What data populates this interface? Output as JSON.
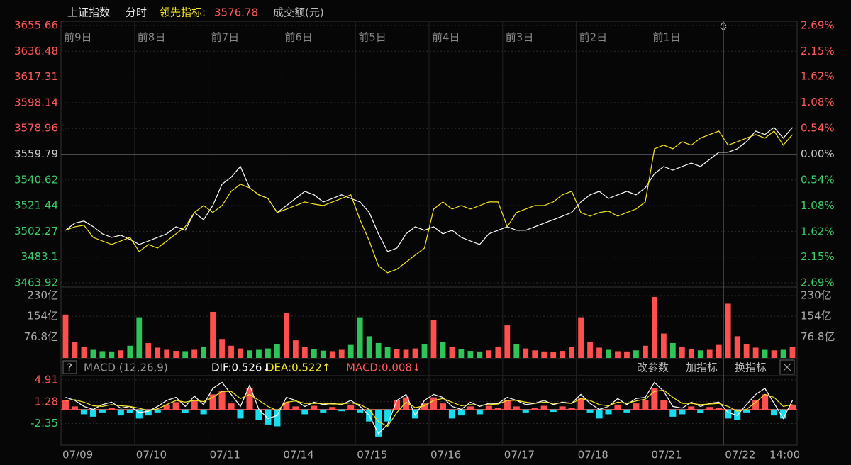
{
  "header": {
    "name": "上证指数",
    "mode": "分时",
    "indicator_label": "领先指标:",
    "indicator_value": 3576.78,
    "volume_label": "成交额(元)"
  },
  "chart_data": [
    {
      "type": "line",
      "categories": [
        "前9日",
        "前8日",
        "前7日",
        "前6日",
        "前5日",
        "前4日",
        "前3日",
        "前2日",
        "前1日",
        null
      ],
      "ylim": [
        3463.92,
        3655.66
      ],
      "yticks": [
        3655.66,
        3636.48,
        3617.31,
        3598.14,
        3578.96,
        3559.79,
        3540.62,
        3521.44,
        3502.27,
        3483.1,
        3463.92
      ],
      "y2lim": [
        -2.69,
        2.69
      ],
      "y2ticks": [
        {
          "value": 2.69,
          "label": "2.69%"
        },
        {
          "value": 2.15,
          "label": "2.15%"
        },
        {
          "value": 1.62,
          "label": "1.62%"
        },
        {
          "value": 1.08,
          "label": "1.08%"
        },
        {
          "value": 0.54,
          "label": "0.54%"
        },
        {
          "value": 0,
          "label": "0.00%"
        },
        {
          "value": -0.54,
          "label": "0.54%"
        },
        {
          "value": -1.08,
          "label": "1.08%"
        },
        {
          "value": -1.62,
          "label": "1.62%"
        },
        {
          "value": -2.15,
          "label": "2.15%"
        },
        {
          "value": -2.69,
          "label": "2.69%"
        }
      ],
      "grid": true,
      "series": [
        {
          "color": "#ffffff",
          "values": [
            [
              3503.1,
              3508.4,
              3510.0,
              3505.8,
              3500.4,
              3497.8,
              3499.4,
              3496.2
            ],
            [
              3492.5,
              3495.1,
              3497.8,
              3500.4,
              3505.7,
              3503.1,
              3516.3,
              3511.0
            ],
            [
              3521.5,
              3537.4,
              3542.7,
              3550.6,
              3534.7,
              3529.5,
              3526.8,
              3516.3
            ],
            [
              3521.5,
              3526.8,
              3532.1,
              3529.5,
              3524.2,
              3526.8,
              3529.5,
              3526.8
            ],
            [
              3524.2,
              3516.3,
              3500.4,
              3487.2,
              3489.8,
              3500.4,
              3505.7,
              3503.1
            ],
            [
              3505.7,
              3500.4,
              3503.1,
              3497.8,
              3495.1,
              3492.5,
              3500.4,
              3503.1
            ],
            [
              3505.7,
              3503.1,
              3503.1,
              3505.7,
              3508.4,
              3511.0,
              3513.6,
              3516.3
            ],
            [
              3524.2,
              3529.5,
              3532.1,
              3526.8,
              3529.5,
              3532.1,
              3529.5,
              3534.7
            ],
            [
              3545.3,
              3550.6,
              3547.9,
              3550.6,
              3553.2,
              3550.6,
              3555.9,
              3561.2
            ],
            [
              3561.2,
              3563.8,
              3569.1,
              3577.0,
              3574.4,
              3579.7,
              3571.8,
              3579.7
            ]
          ]
        },
        {
          "color": "#f5e625",
          "values": [
            [
              3503.1,
              3505.7,
              3506.8,
              3497.8,
              3495.1,
              3492.5,
              3495.1,
              3497.8
            ],
            [
              3487.2,
              3492.5,
              3489.8,
              3495.1,
              3500.4,
              3505.7,
              3516.3,
              3521.5
            ],
            [
              3516.3,
              3521.5,
              3532.1,
              3537.4,
              3534.7,
              3529.5,
              3526.8,
              3516.3
            ],
            [
              3518.9,
              3521.5,
              3524.2,
              3522.6,
              3521.5,
              3524.2,
              3526.8,
              3529.5
            ],
            [
              3510.9,
              3495.1,
              3476.6,
              3471.4,
              3474.0,
              3479.3,
              3484.6,
              3489.8
            ],
            [
              3518.9,
              3524.2,
              3518.9,
              3521.5,
              3518.9,
              3521.5,
              3524.2,
              3524.2
            ],
            [
              3505.7,
              3516.3,
              3518.9,
              3521.5,
              3521.5,
              3524.2,
              3529.5,
              3532.1
            ],
            [
              3516.3,
              3513.6,
              3516.3,
              3517.4,
              3513.6,
              3516.3,
              3518.9,
              3524.2
            ],
            [
              3563.8,
              3566.5,
              3563.8,
              3569.1,
              3566.5,
              3571.8,
              3574.4,
              3577.0
            ],
            [
              3566.5,
              3569.1,
              3571.8,
              3574.4,
              3571.8,
              3577.0,
              3566.5,
              3574.4
            ]
          ]
        }
      ]
    },
    {
      "type": "bar",
      "ylim": [
        0,
        230
      ],
      "yticks": [
        {
          "value": 230,
          "label": "230亿"
        },
        {
          "value": 154,
          "label": "154亿"
        },
        {
          "value": 76.8,
          "label": "76.8亿"
        }
      ],
      "up_color": "#ff5050",
      "down_color": "#2fc45a",
      "values": [
        [
          160,
          60,
          40,
          30,
          25,
          24,
          28,
          45
        ],
        [
          150,
          55,
          38,
          30,
          26,
          25,
          30,
          42
        ],
        [
          170,
          70,
          45,
          35,
          28,
          30,
          35,
          50
        ],
        [
          165,
          65,
          40,
          32,
          27,
          25,
          30,
          48
        ],
        [
          150,
          80,
          55,
          40,
          32,
          30,
          35,
          50
        ],
        [
          140,
          60,
          40,
          32,
          26,
          24,
          28,
          42
        ],
        [
          120,
          50,
          35,
          28,
          24,
          22,
          26,
          40
        ],
        [
          150,
          60,
          38,
          30,
          25,
          24,
          28,
          45
        ],
        [
          225,
          90,
          55,
          40,
          32,
          28,
          30,
          48
        ],
        [
          200,
          80,
          50,
          38,
          30,
          28,
          30,
          40
        ]
      ]
    },
    {
      "type": "macd",
      "help": "?",
      "title": "MACD (12,26,9)",
      "dif_label": "DIF:0.526↓",
      "dea_label": "DEA:0.522↑",
      "macd_label": "MACD:0.008↓",
      "buttons": [
        "改参数",
        "加指标",
        "换指标"
      ],
      "categories": [
        "07/09",
        "07/10",
        "07/11",
        "07/14",
        "07/15",
        "07/16",
        "07/17",
        "07/18",
        "07/21",
        "07/22"
      ],
      "x_end_label": "14:00",
      "ylim": [
        -5.92,
        5.6
      ],
      "yticks": [
        4.91,
        1.28,
        -2.35
      ],
      "positive_color": "#ff5050",
      "negative_color": "#19dcee",
      "histogram": [
        [
          1.5,
          0.5,
          -0.8,
          -1.2,
          -0.5,
          0.3,
          -1.0,
          -0.6
        ],
        [
          -1.5,
          -1.0,
          -0.5,
          0.8,
          1.2,
          -0.6,
          1.5,
          -0.8
        ],
        [
          2.5,
          3.0,
          1.0,
          -1.5,
          3.5,
          -1.8,
          -2.5,
          -2.8
        ],
        [
          1.2,
          0.5,
          -0.8,
          0.6,
          -0.5,
          0.4,
          -0.3,
          0.8
        ],
        [
          -0.5,
          -2.0,
          -4.5,
          -2.0,
          1.5,
          2.0,
          -1.5,
          1.0
        ],
        [
          2.0,
          1.0,
          -1.5,
          -1.0,
          0.5,
          -0.8,
          0.6,
          0.3
        ],
        [
          1.5,
          0.5,
          -0.5,
          0.3,
          0.6,
          -0.4,
          0.5,
          0.3
        ],
        [
          1.8,
          -0.5,
          -1.5,
          -0.8,
          0.8,
          -0.5,
          1.0,
          1.5
        ],
        [
          3.5,
          1.5,
          -1.2,
          -0.8,
          0.5,
          -0.6,
          0.4,
          0.3
        ],
        [
          -1.5,
          -1.8,
          -0.5,
          1.5,
          2.5,
          -1.0,
          -1.5,
          0.8
        ]
      ],
      "series": [
        {
          "color": "#ffffff",
          "values": [
            [
              2.0,
              1.5,
              0.5,
              0,
              0.8,
              1.2,
              0.2,
              0.5
            ],
            [
              -0.5,
              -0.3,
              0.5,
              1.5,
              2.0,
              0.5,
              2.2,
              0.8
            ],
            [
              3.5,
              4.5,
              2.5,
              0.5,
              4.0,
              0,
              -1.5,
              -1.0
            ],
            [
              2.0,
              1.5,
              0.5,
              1.2,
              0.8,
              1.0,
              0.8,
              1.5
            ],
            [
              0.5,
              -1.0,
              -4.0,
              -2.5,
              1.5,
              2.5,
              -1.0,
              1.5
            ],
            [
              2.5,
              2.0,
              0.5,
              0,
              1.2,
              0.5,
              1.0,
              1.0
            ],
            [
              2.0,
              1.5,
              0.8,
              1.0,
              1.5,
              0.8,
              1.2,
              1.0
            ],
            [
              2.5,
              1.0,
              0,
              0.5,
              1.8,
              0.8,
              1.8,
              2.0
            ],
            [
              4.5,
              3.0,
              0.5,
              0.2,
              1.2,
              0.5,
              1.0,
              1.2
            ],
            [
              -0.5,
              -1.0,
              0.8,
              2.5,
              3.5,
              1.0,
              -1.5,
              1.5
            ]
          ]
        },
        {
          "color": "#f5e625",
          "values": [
            [
              1.5,
              1.6,
              1.2,
              0.6,
              0.5,
              0.8,
              0.6,
              0.5
            ],
            [
              0.2,
              -0.2,
              0.1,
              0.8,
              1.5,
              1.2,
              1.5,
              1.3
            ],
            [
              2.0,
              3.0,
              3.0,
              1.8,
              2.5,
              1.5,
              0.5,
              -0.2
            ],
            [
              1.2,
              1.4,
              1.0,
              1.0,
              1.0,
              0.9,
              0.9,
              1.1
            ],
            [
              0.8,
              0,
              -2.0,
              -2.8,
              -0.5,
              1.2,
              0.3,
              0.6
            ],
            [
              1.5,
              1.8,
              1.2,
              0.6,
              0.8,
              0.7,
              0.8,
              0.9
            ],
            [
              1.5,
              1.5,
              1.2,
              1.0,
              1.2,
              1.0,
              1.1,
              1.0
            ],
            [
              1.8,
              1.5,
              0.8,
              0.6,
              1.2,
              1.0,
              1.4,
              1.7
            ],
            [
              3.0,
              3.2,
              2.0,
              1.0,
              1.0,
              0.8,
              0.9,
              1.0
            ],
            [
              0.5,
              -0.3,
              0,
              1.2,
              2.5,
              2.0,
              0.5,
              0.8
            ]
          ]
        }
      ]
    }
  ]
}
